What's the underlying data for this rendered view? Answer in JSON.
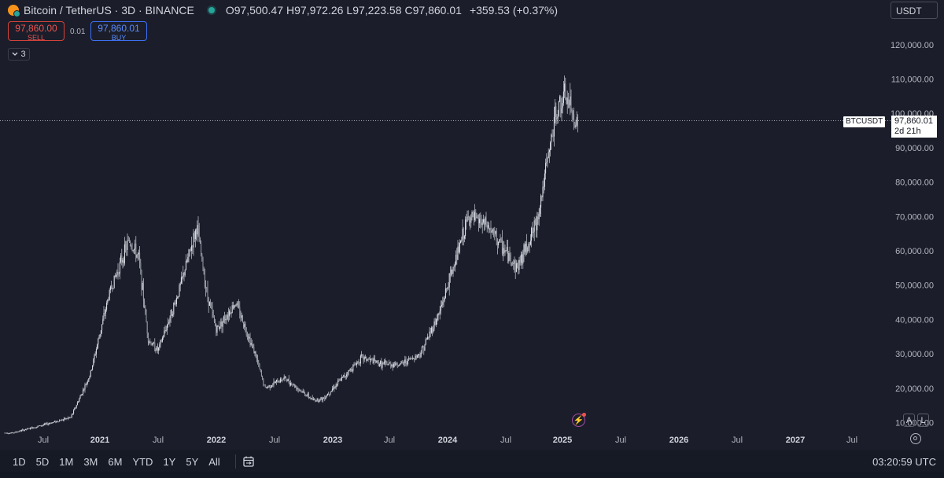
{
  "header": {
    "title": "Bitcoin / TetherUS · 3D · BINANCE",
    "open_label": "O",
    "open": "97,500.47",
    "high_label": "H",
    "high": "97,972.26",
    "low_label": "L",
    "low": "97,223.58",
    "close_label": "C",
    "close": "97,860.01",
    "change": "+359.53 (+0.37%)",
    "currency": "USDT"
  },
  "trade": {
    "sell_price": "97,860.00",
    "sell_label": "SELL",
    "spread": "0.01",
    "buy_price": "97,860.01",
    "buy_label": "BUY"
  },
  "indicators": {
    "count": "3"
  },
  "price_tag": {
    "symbol": "BTCUSDT",
    "price": "97,860.01",
    "countdown": "2d 21h"
  },
  "price_scale": {
    "ticks": [
      "120,000.00",
      "110,000.00",
      "100,000.00",
      "90,000.00",
      "80,000.00",
      "70,000.00",
      "60,000.00",
      "50,000.00",
      "40,000.00",
      "30,000.00",
      "20,000.00",
      "10,000.00"
    ]
  },
  "time_axis": {
    "labels": [
      "Jul",
      "2021",
      "Jul",
      "2022",
      "Jul",
      "2023",
      "Jul",
      "2024",
      "Jul",
      "2025",
      "Jul",
      "2026",
      "Jul",
      "2027",
      "Jul"
    ]
  },
  "scale_buttons": {
    "auto": "A",
    "log": "L"
  },
  "timeframes": [
    "1D",
    "5D",
    "1M",
    "3M",
    "6M",
    "YTD",
    "1Y",
    "5Y",
    "All"
  ],
  "clock": "03:20:59 UTC",
  "colors": {
    "background": "#1b1e2a",
    "candle": "#d1d4dc",
    "sell": "#ef5350",
    "buy": "#5b8cff"
  },
  "chart_data": {
    "type": "line",
    "series": [
      {
        "x": [
          "2020-04",
          "2020-07",
          "2020-10",
          "2020-12",
          "2021-01",
          "2021-02",
          "2021-04",
          "2021-05",
          "2021-06",
          "2021-07",
          "2021-09",
          "2021-11",
          "2021-12",
          "2022-01",
          "2022-03",
          "2022-05",
          "2022-06",
          "2022-08",
          "2022-11",
          "2022-12",
          "2023-03",
          "2023-04",
          "2023-06",
          "2023-08",
          "2023-10",
          "2023-12",
          "2024-03",
          "2024-05",
          "2024-08",
          "2024-10",
          "2024-12",
          "2025-01",
          "2025-02"
        ],
        "values": [
          7000,
          9200,
          11500,
          24000,
          36000,
          48000,
          63000,
          58000,
          34000,
          31000,
          47000,
          67000,
          48000,
          37000,
          45000,
          30000,
          20000,
          23000,
          16500,
          17000,
          26000,
          29000,
          27000,
          27000,
          30000,
          42000,
          70000,
          67000,
          55000,
          68000,
          100000,
          105000,
          97860
        ]
      }
    ],
    "ylim": [
      6000,
      125000
    ]
  }
}
